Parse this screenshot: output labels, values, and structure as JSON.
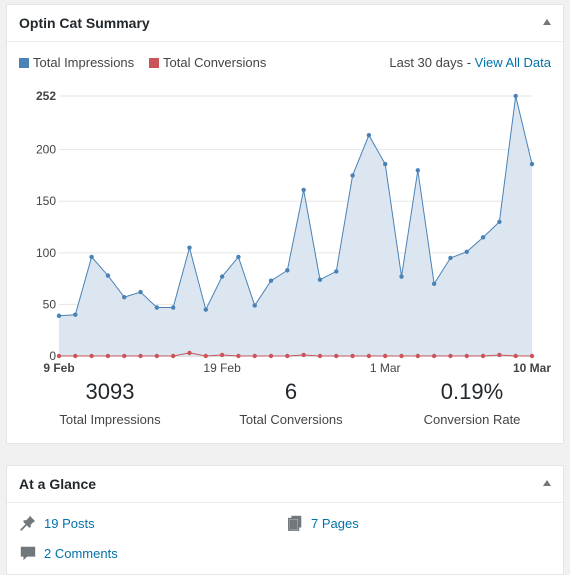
{
  "widget1": {
    "title": "Optin Cat Summary",
    "legend": {
      "impressions": {
        "label": "Total Impressions",
        "color": "#4a82b6"
      },
      "conversions": {
        "label": "Total Conversions",
        "color": "#c9545a"
      }
    },
    "range_label": "Last 30 days",
    "range_separator": " - ",
    "view_all": "View All Data",
    "stats": [
      {
        "value": "3093",
        "label": "Total Impressions"
      },
      {
        "value": "6",
        "label": "Total Conversions"
      },
      {
        "value": "0.19%",
        "label": "Conversion Rate"
      }
    ]
  },
  "chart_data": {
    "type": "area",
    "x": [
      "9 Feb",
      "10 Feb",
      "11 Feb",
      "12 Feb",
      "13 Feb",
      "14 Feb",
      "15 Feb",
      "16 Feb",
      "17 Feb",
      "18 Feb",
      "19 Feb",
      "20 Feb",
      "21 Feb",
      "22 Feb",
      "23 Feb",
      "24 Feb",
      "25 Feb",
      "26 Feb",
      "27 Feb",
      "28 Feb",
      "1 Mar",
      "2 Mar",
      "3 Mar",
      "4 Mar",
      "5 Mar",
      "6 Mar",
      "7 Mar",
      "8 Mar",
      "9 Mar",
      "10 Mar"
    ],
    "x_tick_labels": [
      {
        "index": 0,
        "label": "9 Feb",
        "bold": true
      },
      {
        "index": 10,
        "label": "19 Feb",
        "bold": false
      },
      {
        "index": 20,
        "label": "1 Mar",
        "bold": false
      },
      {
        "index": 29,
        "label": "10 Mar",
        "bold": true
      }
    ],
    "y_ticks": [
      0,
      50,
      100,
      150,
      200,
      252
    ],
    "ylim": [
      0,
      252
    ],
    "grid": "horizontal",
    "series": [
      {
        "name": "Total Impressions",
        "color": "#4a82b6",
        "fill": "#dce6f1",
        "values": [
          39,
          40,
          96,
          78,
          57,
          62,
          47,
          47,
          105,
          45,
          77,
          96,
          49,
          73,
          83,
          161,
          74,
          82,
          175,
          214,
          186,
          77,
          180,
          70,
          95,
          101,
          115,
          130,
          252,
          186
        ]
      },
      {
        "name": "Total Conversions",
        "color": "#c9545a",
        "values": [
          0,
          0,
          0,
          0,
          0,
          0,
          0,
          0,
          3,
          0,
          1,
          0,
          0,
          0,
          0,
          1,
          0,
          0,
          0,
          0,
          0,
          0,
          0,
          0,
          0,
          0,
          0,
          1,
          0,
          0
        ]
      }
    ]
  },
  "widget2": {
    "title": "At a Glance",
    "items": [
      {
        "label": "19 Posts",
        "icon": "pushpin-icon"
      },
      {
        "label": "7 Pages",
        "icon": "pages-icon"
      },
      {
        "label": "2 Comments",
        "icon": "comment-icon"
      }
    ]
  }
}
